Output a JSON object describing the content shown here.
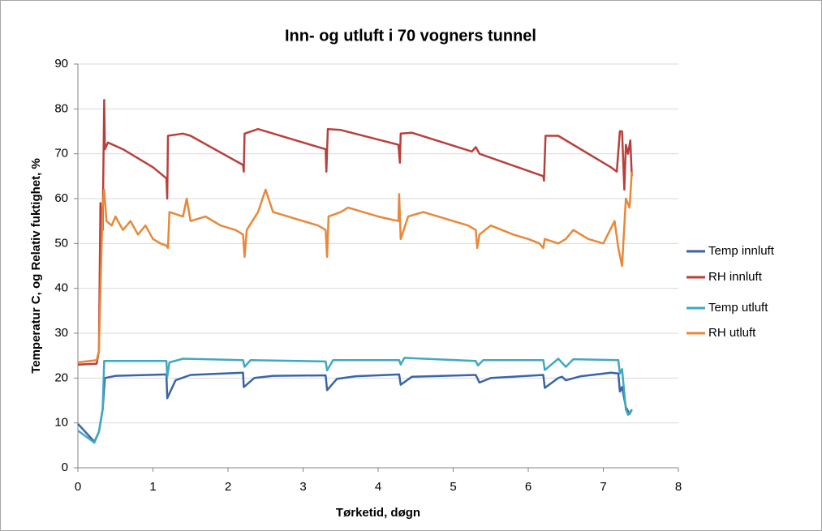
{
  "chart_data": {
    "type": "line",
    "title": "Inn- og utluft i 70 vogners tunnel",
    "xlabel": "Tørketid, døgn",
    "ylabel": "Temperatur C, og Relativ fuktighet, %",
    "xlim": [
      0,
      8
    ],
    "xticks": [
      0,
      1,
      2,
      3,
      4,
      5,
      6,
      7,
      8
    ],
    "ylim": [
      0,
      90
    ],
    "yticks": [
      0,
      10,
      20,
      30,
      40,
      50,
      60,
      70,
      80,
      90
    ],
    "grid": true,
    "legend": "right",
    "series": [
      {
        "name": "Temp innluft",
        "color": "#3a64a8",
        "x": [
          0,
          0.22,
          0.28,
          0.33,
          0.36,
          0.5,
          1.18,
          1.19,
          1.3,
          1.5,
          2.2,
          2.21,
          2.35,
          2.6,
          3.3,
          3.32,
          3.45,
          3.7,
          4.28,
          4.3,
          4.45,
          5.3,
          5.35,
          5.5,
          6.2,
          6.22,
          6.4,
          6.45,
          6.5,
          6.7,
          7.1,
          7.2,
          7.22,
          7.25,
          7.3,
          7.35,
          7.38
        ],
        "values": [
          9.8,
          5.8,
          8,
          13,
          20,
          20.5,
          20.8,
          15.5,
          19.5,
          20.7,
          21.2,
          18,
          20,
          20.5,
          20.6,
          17.3,
          19.8,
          20.4,
          20.8,
          18.5,
          20.3,
          20.7,
          19,
          20,
          20.7,
          17.8,
          20,
          20.3,
          19.5,
          20.4,
          21.2,
          21,
          17,
          18,
          13.5,
          12,
          13
        ]
      },
      {
        "name": "RH innluft",
        "color": "#b8403c",
        "x": [
          0,
          0.25,
          0.28,
          0.3,
          0.33,
          0.35,
          0.36,
          0.4,
          0.6,
          1.0,
          1.18,
          1.19,
          1.2,
          1.4,
          1.5,
          2.2,
          2.21,
          2.22,
          2.4,
          3.3,
          3.31,
          3.33,
          3.5,
          4.27,
          4.29,
          4.3,
          4.45,
          5.25,
          5.3,
          5.35,
          6.2,
          6.21,
          6.23,
          6.4,
          7.1,
          7.18,
          7.22,
          7.25,
          7.28,
          7.3,
          7.33,
          7.36,
          7.38
        ],
        "values": [
          23,
          23.2,
          26,
          59,
          53,
          82,
          71,
          72.5,
          71,
          67,
          64.5,
          60,
          74,
          74.5,
          74,
          67.5,
          66,
          74.5,
          75.5,
          71,
          66,
          75.5,
          75.3,
          72,
          68,
          74.5,
          74.7,
          70.5,
          71.5,
          70,
          65,
          64,
          74,
          74,
          67,
          66,
          75,
          75,
          62,
          72,
          70,
          73,
          65
        ]
      },
      {
        "name": "Temp utluft",
        "color": "#3fa9c0",
        "x": [
          0,
          0.22,
          0.28,
          0.33,
          0.35,
          1.18,
          1.19,
          1.22,
          1.4,
          2.2,
          2.22,
          2.3,
          3.3,
          3.32,
          3.4,
          4.28,
          4.3,
          4.35,
          5.3,
          5.33,
          5.4,
          6.2,
          6.22,
          6.4,
          6.5,
          6.6,
          7.2,
          7.22,
          7.25,
          7.3,
          7.33,
          7.38
        ],
        "values": [
          8.3,
          5.6,
          8,
          13,
          23.8,
          23.8,
          20.3,
          23.5,
          24.3,
          24,
          22.5,
          24,
          23.7,
          21.7,
          24,
          24,
          23,
          24.5,
          23.8,
          22.8,
          24,
          24,
          21.8,
          24.3,
          22.5,
          24.2,
          24,
          21,
          22,
          13,
          11.8,
          12.8
        ]
      },
      {
        "name": "RH utluft",
        "color": "#e8883a",
        "x": [
          0,
          0.25,
          0.28,
          0.3,
          0.33,
          0.35,
          0.38,
          0.45,
          0.5,
          0.6,
          0.7,
          0.8,
          0.9,
          1.0,
          1.1,
          1.18,
          1.2,
          1.22,
          1.4,
          1.45,
          1.5,
          1.7,
          1.9,
          2.1,
          2.2,
          2.22,
          2.25,
          2.4,
          2.5,
          2.6,
          2.8,
          3.0,
          3.2,
          3.3,
          3.32,
          3.34,
          3.5,
          3.6,
          4.0,
          4.27,
          4.28,
          4.3,
          4.4,
          4.6,
          4.8,
          5.0,
          5.2,
          5.3,
          5.32,
          5.35,
          5.5,
          5.8,
          6.0,
          6.15,
          6.2,
          6.22,
          6.4,
          6.5,
          6.6,
          6.8,
          7.0,
          7.15,
          7.2,
          7.25,
          7.3,
          7.35,
          7.38
        ],
        "values": [
          23.5,
          24,
          26,
          40,
          58,
          62,
          55,
          54,
          56,
          53,
          55,
          52,
          54,
          51,
          50,
          49.5,
          49,
          57,
          56,
          60,
          55,
          56,
          54,
          53,
          52,
          47,
          53,
          57,
          62,
          57,
          56,
          55,
          54,
          53,
          47,
          56,
          57,
          58,
          56,
          55,
          61,
          51,
          56,
          57,
          56,
          55,
          54,
          53,
          49,
          52,
          54,
          52,
          51,
          50,
          49,
          51,
          50,
          51,
          53,
          51,
          50,
          55,
          49,
          45,
          60,
          58,
          66
        ]
      }
    ]
  }
}
